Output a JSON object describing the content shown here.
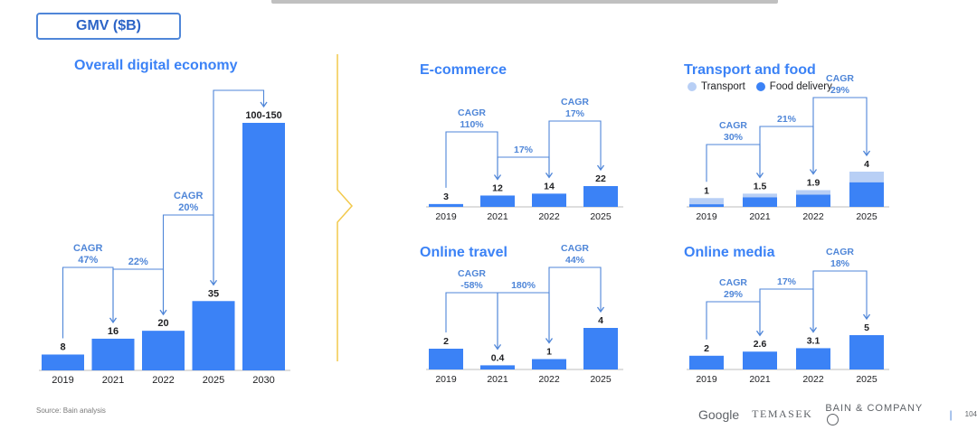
{
  "header": {
    "metric_label": "GMV ($B)"
  },
  "colors": {
    "bar": "#3b82f6",
    "transport": "#b8cff5",
    "title": "#3b82f6",
    "arrow": "#4f86d8",
    "divider": "#f2c94c"
  },
  "legend": {
    "transport": "Transport",
    "food_delivery": "Food delivery"
  },
  "footer": {
    "source": "Source: Bain analysis",
    "brands": [
      "Google",
      "TEMASEK",
      "BAIN & COMPANY"
    ],
    "page": "104"
  },
  "chart_data": [
    {
      "id": "overall",
      "title": "Overall digital economy",
      "type": "bar",
      "categories": [
        "2019",
        "2021",
        "2022",
        "2025",
        "2030"
      ],
      "values": [
        8,
        16,
        20,
        35,
        125
      ],
      "labels": [
        "8",
        "16",
        "20",
        "35",
        "100-150"
      ],
      "growth": [
        {
          "from": 0,
          "to": 1,
          "text": [
            "CAGR",
            "47%"
          ]
        },
        {
          "from": 1,
          "to": 2,
          "text": [
            "22%"
          ]
        },
        {
          "from": 2,
          "to": 3,
          "text": [
            "CAGR",
            "20%"
          ]
        },
        {
          "from": 3,
          "to": 4,
          "text": []
        }
      ]
    },
    {
      "id": "ecommerce",
      "title": "E-commerce",
      "type": "bar",
      "categories": [
        "2019",
        "2021",
        "2022",
        "2025"
      ],
      "values": [
        3,
        12,
        14,
        22
      ],
      "labels": [
        "3",
        "12",
        "14",
        "22"
      ],
      "growth": [
        {
          "from": 0,
          "to": 1,
          "text": [
            "CAGR",
            "110%"
          ]
        },
        {
          "from": 1,
          "to": 2,
          "text": [
            "17%"
          ]
        },
        {
          "from": 2,
          "to": 3,
          "text": [
            "CAGR",
            "17%"
          ]
        }
      ]
    },
    {
      "id": "transport_food",
      "title": "Transport and food",
      "type": "bar",
      "stacked": true,
      "categories": [
        "2019",
        "2021",
        "2022",
        "2025"
      ],
      "series": [
        {
          "name": "Food delivery",
          "values": [
            0.3,
            1.1,
            1.4,
            2.8
          ]
        },
        {
          "name": "Transport",
          "values": [
            0.7,
            0.4,
            0.5,
            1.2
          ]
        }
      ],
      "labels": [
        "1",
        "1.5",
        "1.9",
        "4"
      ],
      "growth": [
        {
          "from": 0,
          "to": 1,
          "text": [
            "CAGR",
            "30%"
          ]
        },
        {
          "from": 1,
          "to": 2,
          "text": [
            "21%"
          ]
        },
        {
          "from": 2,
          "to": 3,
          "text": [
            "CAGR",
            "29%"
          ]
        }
      ]
    },
    {
      "id": "online_travel",
      "title": "Online travel",
      "type": "bar",
      "categories": [
        "2019",
        "2021",
        "2022",
        "2025"
      ],
      "values": [
        2,
        0.4,
        1,
        4
      ],
      "labels": [
        "2",
        "0.4",
        "1",
        "4"
      ],
      "growth": [
        {
          "from": 0,
          "to": 1,
          "text": [
            "CAGR",
            "-58%"
          ]
        },
        {
          "from": 1,
          "to": 2,
          "text": [
            "180%"
          ]
        },
        {
          "from": 2,
          "to": 3,
          "text": [
            "CAGR",
            "44%"
          ]
        }
      ]
    },
    {
      "id": "online_media",
      "title": "Online media",
      "type": "bar",
      "categories": [
        "2019",
        "2021",
        "2022",
        "2025"
      ],
      "values": [
        2,
        2.6,
        3.1,
        5
      ],
      "labels": [
        "2",
        "2.6",
        "3.1",
        "5"
      ],
      "growth": [
        {
          "from": 0,
          "to": 1,
          "text": [
            "CAGR",
            "29%"
          ]
        },
        {
          "from": 1,
          "to": 2,
          "text": [
            "17%"
          ]
        },
        {
          "from": 2,
          "to": 3,
          "text": [
            "CAGR",
            "18%"
          ]
        }
      ]
    }
  ]
}
